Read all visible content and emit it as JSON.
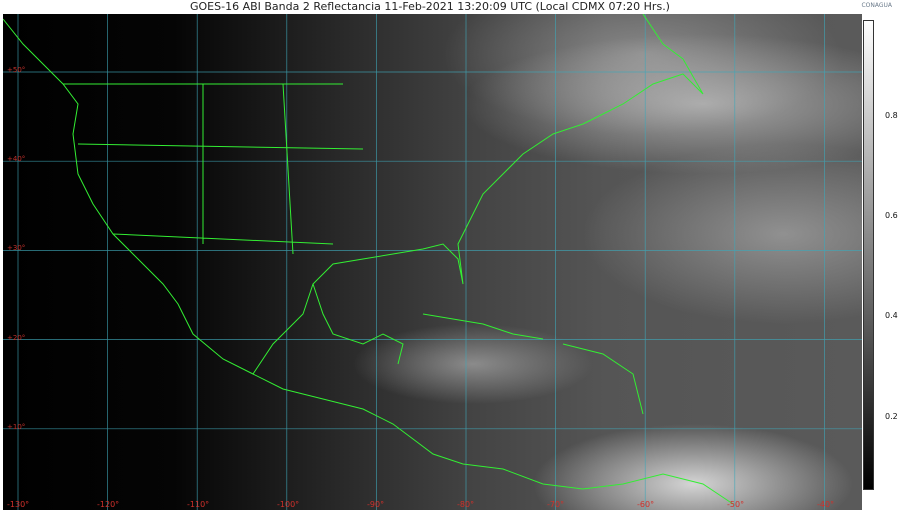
{
  "title": "GOES-16 ABI Banda 2 Reflectancia 11-Feb-2021 13:20:09 UTC (Local CDMX  07:20 Hrs.)",
  "logo": "CONAGUA",
  "colors": {
    "coastline": "#33ee33",
    "grid": "#3fa7b8",
    "grid_labels": "#d0302a"
  },
  "latitude_labels": [
    "+50°",
    "+40°",
    "+30°",
    "+20°",
    "+10°"
  ],
  "longitude_labels": [
    "-130°",
    "-120°",
    "-110°",
    "-100°",
    "-90°",
    "-80°",
    "-70°",
    "-60°",
    "-50°",
    "-40°"
  ],
  "colorbar": {
    "ticks": [
      "0.8",
      "0.6",
      "0.4",
      "0.2"
    ],
    "range": [
      0,
      1
    ]
  }
}
